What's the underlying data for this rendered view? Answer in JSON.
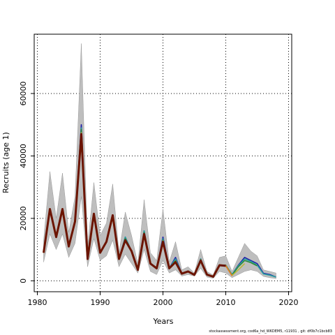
{
  "chart_data": {
    "type": "line",
    "title": "",
    "xlabel": "Years",
    "ylabel": "Recruits (age 1)",
    "xlim": [
      1979.5,
      2020.5
    ],
    "ylim": [
      -3500,
      79000
    ],
    "x_ticks": [
      1980,
      1990,
      2000,
      2010,
      2020
    ],
    "y_ticks": [
      0,
      20000,
      40000,
      60000
    ],
    "grid": "dotted at major ticks",
    "confidence_band": {
      "x": [
        1981,
        1982,
        1983,
        1984,
        1985,
        1986,
        1987,
        1988,
        1989,
        1990,
        1991,
        1992,
        1993,
        1994,
        1995,
        1996,
        1997,
        1998,
        1999,
        2000,
        2001,
        2002,
        2003,
        2004,
        2005,
        2006,
        2007,
        2008,
        2009,
        2010,
        2011,
        2012,
        2013,
        2014,
        2015,
        2016,
        2017,
        2018
      ],
      "lower": [
        6000,
        15000,
        10000,
        15000,
        7500,
        12000,
        27000,
        4500,
        13500,
        6500,
        8000,
        13000,
        4500,
        8500,
        5500,
        2500,
        10000,
        3000,
        2000,
        6500,
        2500,
        3500,
        1500,
        2000,
        1500,
        4000,
        1200,
        800,
        3000,
        2500,
        1000,
        2000,
        3000,
        3500,
        3000,
        1400,
        1000,
        700
      ],
      "upper": [
        13000,
        35000,
        20000,
        34500,
        15500,
        27000,
        76000,
        11000,
        31500,
        14500,
        18500,
        31000,
        9000,
        22000,
        14500,
        5500,
        26000,
        9000,
        6500,
        23000,
        6000,
        12500,
        3500,
        4500,
        2500,
        10000,
        3000,
        1800,
        7500,
        8000,
        3000,
        7500,
        12000,
        9500,
        8000,
        3500,
        3000,
        2500
      ]
    },
    "series": [
      {
        "color": "#1f1fa8",
        "values": [
          9000,
          23000,
          14000,
          23000,
          11000,
          19000,
          50000,
          7000,
          21500,
          9000,
          12500,
          21000,
          7000,
          14000,
          9500,
          3500,
          16000,
          5500,
          4000,
          14000,
          4000,
          7500,
          2300,
          3000,
          1900,
          7000,
          2000,
          1300,
          5000,
          5000,
          2000,
          5000,
          7500,
          6500,
          5500,
          2400,
          2000,
          1200
        ]
      },
      {
        "color": "#2aa1a1",
        "values": [
          9000,
          23000,
          14000,
          23000,
          11000,
          19000,
          49000,
          7000,
          21500,
          9000,
          12500,
          21000,
          7000,
          14000,
          9500,
          3500,
          16000,
          5500,
          4000,
          13500,
          4000,
          7000,
          2300,
          3000,
          1900,
          7000,
          2000,
          1300,
          5000,
          5000,
          2000,
          4800,
          7000,
          6200,
          5000,
          2200,
          1800,
          1200
        ]
      },
      {
        "color": "#2e8b3c",
        "values": [
          9000,
          23000,
          14000,
          23000,
          11000,
          19000,
          48500,
          7000,
          21500,
          9000,
          12500,
          21000,
          7000,
          13500,
          9500,
          3500,
          15500,
          5500,
          4000,
          13000,
          4000,
          6500,
          2300,
          3000,
          1900,
          6800,
          2000,
          1300,
          5000,
          5000,
          1800,
          4500,
          6500,
          5800,
          4800
        ]
      },
      {
        "color": "#b8b83a",
        "values": [
          9000,
          23000,
          14000,
          23000,
          11000,
          19000,
          47500,
          7000,
          21500,
          9000,
          12500,
          21000,
          7000,
          13000,
          9500,
          3500,
          15000,
          5500,
          4000,
          12800,
          4000,
          6200,
          2300,
          3000,
          1900,
          6700,
          2000,
          1300,
          5000,
          4900,
          1700,
          3500,
          5500
        ]
      },
      {
        "color": "#e07b20",
        "values": [
          9000,
          23000,
          14000,
          23000,
          11000,
          19000,
          47000,
          7000,
          21500,
          9000,
          12500,
          21000,
          7000,
          13000,
          9500,
          3500,
          15000,
          5500,
          4000,
          12600,
          4000,
          6000,
          2300,
          3000,
          1900,
          6600,
          2000,
          1300,
          5000,
          4800,
          1600
        ]
      },
      {
        "color": "#6b1400",
        "values": [
          9000,
          23000,
          14000,
          23000,
          11000,
          19000,
          47000,
          7000,
          21500,
          9000,
          12500,
          21000,
          7000,
          13000,
          9500,
          3500,
          15000,
          5500,
          4000,
          12500,
          4000,
          6000,
          2300,
          3000,
          1900,
          6500,
          2000,
          1300,
          5000,
          4800
        ]
      }
    ]
  },
  "footer": "stockassessment.org, cod6a_hd_WKDEM5, r11931 , git: df0b7c1bcb83"
}
